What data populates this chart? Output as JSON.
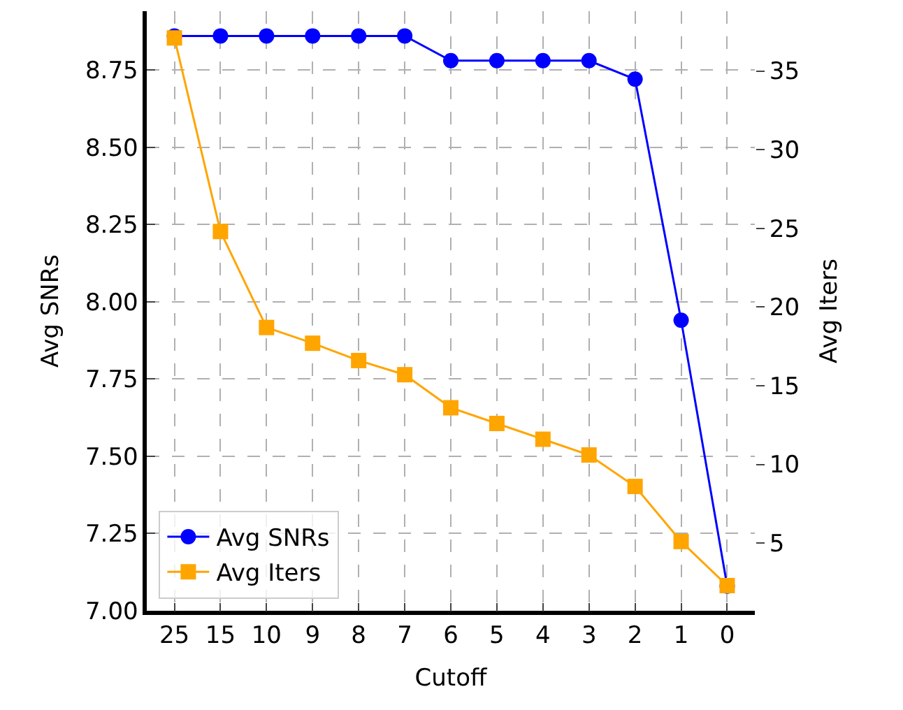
{
  "chart_data": {
    "type": "line",
    "xlabel": "Cutoff",
    "ylabel": "Avg SNRs",
    "y2label": "Avg Iters",
    "categories": [
      "25",
      "15",
      "10",
      "9",
      "8",
      "7",
      "6",
      "5",
      "4",
      "3",
      "2",
      "1",
      "0"
    ],
    "series": [
      {
        "name": "Avg SNRs",
        "color": "#0000ff",
        "marker": "circle",
        "values": [
          8.86,
          8.86,
          8.86,
          8.86,
          8.86,
          8.86,
          8.78,
          8.78,
          8.78,
          8.78,
          8.72,
          7.94,
          7.08
        ]
      },
      {
        "name": "Avg Iters",
        "color": "#ffa500",
        "marker": "square",
        "axis": "y2",
        "values": [
          37.1,
          24.8,
          18.7,
          17.7,
          16.6,
          15.7,
          13.6,
          12.6,
          11.6,
          10.6,
          8.6,
          5.1,
          2.3
        ]
      }
    ],
    "ylim": [
      7.0,
      8.94
    ],
    "yticks": [
      {
        "value": 7.0,
        "label": "7.00"
      },
      {
        "value": 7.25,
        "label": "7.25"
      },
      {
        "value": 7.5,
        "label": "7.50"
      },
      {
        "value": 7.75,
        "label": "7.75"
      },
      {
        "value": 8.0,
        "label": "8.00"
      },
      {
        "value": 8.25,
        "label": "8.25"
      },
      {
        "value": 8.5,
        "label": "8.50"
      },
      {
        "value": 8.75,
        "label": "8.75"
      }
    ],
    "y2lim": [
      0.7,
      38.8
    ],
    "y2ticks": [
      5,
      10,
      15,
      20,
      25,
      30,
      35
    ],
    "grid": true,
    "legend": "bottom left",
    "line_style": "solid"
  }
}
